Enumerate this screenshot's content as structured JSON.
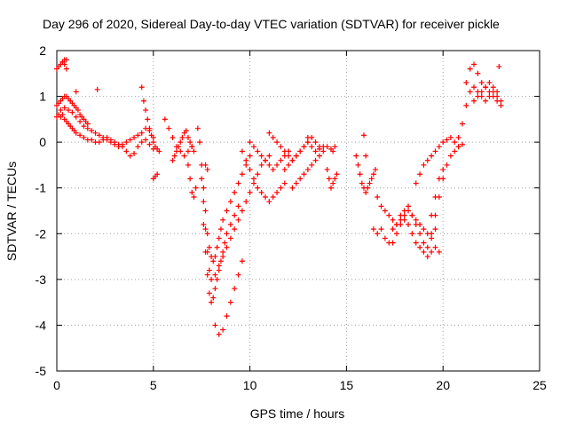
{
  "chart_data": {
    "type": "scatter",
    "title": "Day 296 of 2020, Sidereal Day-to-day VTEC variation (SDTVAR) for receiver pickle",
    "xlabel": "GPS time / hours",
    "ylabel": "SDTVAR / TECUs",
    "xlim": [
      0,
      25
    ],
    "ylim": [
      -5,
      2
    ],
    "xticks": [
      0,
      5,
      10,
      15,
      20,
      25
    ],
    "yticks": [
      -5,
      -4,
      -3,
      -2,
      -1,
      0,
      1,
      2
    ],
    "xtick_labels": [
      "0",
      "5",
      "10",
      "15",
      "20",
      "25"
    ],
    "ytick_labels": [
      "-5",
      "-4",
      "-3",
      "-2",
      "-1",
      "0",
      "1",
      "2"
    ],
    "grid": true,
    "marker": "+",
    "color": "#ff0000",
    "series": [
      {
        "name": "SDTVAR",
        "x": [
          0.0,
          0.1,
          0.2,
          0.3,
          0.4,
          0.5,
          0.6,
          0.7,
          0.8,
          0.9,
          1.0,
          1.2,
          1.4,
          1.6,
          1.8,
          2.0,
          2.2,
          2.4,
          2.6,
          2.8,
          3.0,
          3.2,
          3.4,
          3.6,
          3.8,
          4.0,
          4.2,
          4.4,
          4.6,
          4.8,
          5.0,
          0.0,
          0.1,
          0.2,
          0.3,
          0.4,
          0.5,
          0.6,
          0.7,
          0.8,
          0.9,
          1.0,
          1.1,
          1.2,
          1.3,
          1.4,
          1.5,
          1.6,
          0.0,
          0.1,
          0.2,
          0.3,
          0.4,
          0.5,
          0.2,
          0.4,
          0.6,
          0.8,
          1.0,
          1.2,
          1.4,
          1.6,
          1.8,
          2.0,
          2.2,
          2.4,
          2.6,
          2.8,
          3.0,
          3.2,
          3.4,
          3.6,
          3.8,
          4.0,
          4.2,
          4.4,
          4.6,
          4.8,
          5.0,
          4.5,
          4.6,
          4.7,
          4.8,
          4.9,
          5.0,
          5.1,
          5.2,
          5.3,
          5.0,
          5.1,
          5.2,
          5.6,
          5.8,
          6.0,
          6.2,
          6.4,
          6.6,
          6.8,
          7.0,
          6.0,
          6.1,
          6.2,
          6.3,
          6.4,
          6.5,
          6.6,
          6.7,
          6.8,
          6.9,
          7.0,
          7.1,
          6.8,
          6.9,
          7.0,
          7.1,
          7.2,
          7.3,
          7.4,
          7.5,
          7.6,
          7.7,
          7.8,
          7.9,
          8.0,
          8.1,
          8.2,
          8.3,
          8.4,
          8.5,
          8.6,
          8.8,
          9.0,
          9.2,
          9.4,
          9.6,
          9.8,
          10.0,
          7.5,
          7.6,
          7.7,
          7.8,
          7.9,
          8.0,
          8.2,
          8.4,
          8.6,
          8.8,
          9.0,
          9.2,
          9.4,
          9.6,
          9.8,
          10.0,
          10.2,
          10.4,
          10.6,
          10.8,
          11.0,
          7.6,
          7.7,
          7.8,
          7.9,
          8.0,
          8.1,
          8.2,
          8.3,
          8.4,
          8.5,
          8.6,
          8.7,
          8.8,
          9.0,
          9.2,
          9.4,
          8.2,
          8.4,
          8.6,
          8.8,
          9.0,
          9.2,
          9.4,
          9.6,
          9.6,
          9.8,
          10.0,
          10.2,
          10.4,
          10.6,
          10.8,
          11.0,
          11.2,
          11.4,
          11.6,
          11.8,
          10.0,
          10.2,
          10.4,
          10.6,
          10.8,
          11.0,
          11.2,
          11.4,
          11.6,
          11.8,
          12.0,
          11.0,
          11.2,
          11.4,
          11.6,
          11.8,
          12.0,
          12.2,
          12.4,
          12.6,
          12.8,
          13.0,
          13.2,
          13.4,
          13.6,
          13.8,
          14.0,
          14.2,
          14.4,
          11.8,
          12.0,
          12.2,
          12.4,
          12.6,
          12.8,
          13.0,
          13.2,
          13.4,
          13.6,
          13.8,
          12.2,
          12.4,
          12.6,
          12.8,
          13.0,
          13.2,
          13.4,
          13.6,
          14.0,
          14.1,
          14.2,
          14.3,
          14.4,
          14.5,
          15.5,
          15.6,
          15.7,
          15.8,
          15.9,
          16.0,
          16.1,
          16.2,
          16.3,
          16.4,
          16.5,
          16.4,
          16.6,
          16.8,
          17.0,
          17.2,
          17.4,
          17.6,
          17.8,
          18.0,
          18.2,
          18.4,
          18.6,
          18.8,
          19.0,
          19.2,
          19.4,
          19.6,
          19.8,
          16.6,
          16.8,
          17.0,
          17.2,
          17.4,
          17.6,
          17.8,
          18.0,
          18.2,
          18.4,
          18.6,
          18.8,
          19.0,
          19.2,
          19.4,
          19.6,
          17.4,
          17.6,
          17.8,
          18.0,
          18.2,
          18.4,
          18.6,
          18.8,
          19.0,
          19.2,
          19.4,
          19.6,
          19.8,
          20.0,
          18.6,
          18.8,
          19.0,
          19.2,
          19.4,
          19.6,
          19.8,
          20.0,
          20.2,
          20.4,
          20.6,
          20.8,
          19.4,
          19.6,
          19.8,
          20.0,
          20.2,
          20.4,
          20.6,
          20.8,
          21.0,
          20.8,
          21.0,
          21.2,
          21.4,
          21.6,
          21.8,
          22.0,
          22.2,
          22.4,
          22.6,
          22.8,
          23.0,
          21.2,
          21.4,
          21.6,
          21.8,
          22.0,
          22.2,
          22.4,
          22.6,
          22.8,
          23.0,
          21.6,
          21.8,
          22.0,
          22.2,
          22.4,
          22.6,
          22.8,
          0.3,
          0.4,
          0.5,
          22.9,
          1.0,
          2.1,
          4.4,
          7.7,
          7.8,
          12.0,
          13.0,
          14.3,
          15.9,
          16.0
        ],
        "y": [
          0.55,
          0.6,
          0.55,
          0.6,
          0.5,
          0.45,
          0.4,
          0.35,
          0.3,
          0.25,
          0.2,
          0.15,
          0.1,
          0.05,
          0.05,
          0.0,
          0.0,
          0.05,
          0.1,
          0.05,
          0.0,
          -0.05,
          -0.1,
          -0.2,
          -0.3,
          -0.25,
          -0.1,
          0.0,
          0.05,
          -0.05,
          -0.15,
          0.8,
          0.85,
          0.9,
          0.95,
          1.0,
          1.0,
          0.95,
          0.9,
          0.85,
          0.8,
          0.75,
          0.7,
          0.6,
          0.55,
          0.5,
          0.45,
          0.4,
          1.6,
          1.65,
          1.7,
          1.75,
          1.7,
          1.6,
          0.7,
          0.75,
          0.7,
          0.65,
          0.55,
          0.45,
          0.35,
          0.3,
          0.25,
          0.2,
          0.15,
          0.1,
          0.05,
          0.0,
          -0.05,
          -0.1,
          -0.05,
          0.0,
          0.05,
          0.1,
          0.15,
          0.2,
          0.3,
          0.25,
          0.1,
          0.9,
          0.7,
          0.5,
          0.3,
          0.15,
          0.0,
          -0.1,
          -0.15,
          -0.2,
          -0.8,
          -0.75,
          -0.7,
          0.5,
          0.3,
          0.1,
          -0.1,
          -0.2,
          -0.3,
          -0.2,
          -0.1,
          -0.4,
          -0.3,
          -0.2,
          -0.1,
          0.0,
          0.1,
          0.2,
          0.25,
          0.1,
          0.0,
          -0.1,
          -0.2,
          -0.5,
          -0.8,
          -1.1,
          -1.2,
          -1.0,
          0.3,
          0.0,
          -0.5,
          -1.0,
          -1.5,
          -2.0,
          -2.3,
          -2.5,
          -2.6,
          -2.5,
          -2.3,
          -2.1,
          -1.9,
          -1.7,
          -1.5,
          -1.3,
          -1.1,
          -0.9,
          -0.7,
          -0.5,
          -0.3,
          -0.8,
          -1.3,
          -1.9,
          -2.4,
          -2.8,
          -3.0,
          -2.9,
          -2.7,
          -2.5,
          -2.3,
          -2.1,
          -1.9,
          -1.7,
          -1.5,
          -1.3,
          -1.1,
          -0.9,
          -0.7,
          -0.5,
          -0.4,
          -0.3,
          -1.8,
          -2.4,
          -2.9,
          -3.3,
          -3.5,
          -3.4,
          -3.2,
          -3.0,
          -2.8,
          -2.6,
          -2.4,
          -2.2,
          -2.0,
          -1.8,
          -1.6,
          -1.4,
          -4.0,
          -4.2,
          -4.1,
          -3.8,
          -3.5,
          -3.2,
          -2.9,
          -2.6,
          -0.2,
          -0.4,
          -0.6,
          -0.8,
          -1.0,
          -1.1,
          -1.2,
          -1.3,
          -1.2,
          -1.1,
          -1.0,
          -0.9,
          0.0,
          -0.1,
          -0.2,
          -0.3,
          -0.4,
          -0.5,
          -0.6,
          -0.5,
          -0.4,
          -0.3,
          -0.2,
          0.2,
          0.1,
          0.0,
          -0.1,
          -0.2,
          -0.3,
          -0.4,
          -0.3,
          -0.2,
          -0.1,
          0.0,
          -0.1,
          -0.2,
          -0.15,
          -0.1,
          -0.1,
          -0.15,
          -0.1,
          -0.6,
          -0.5,
          -0.4,
          -0.3,
          -0.2,
          -0.1,
          0.0,
          0.1,
          0.0,
          -0.1,
          -0.2,
          -1.0,
          -0.9,
          -0.8,
          -0.7,
          -0.6,
          -0.5,
          -0.4,
          -0.3,
          -0.6,
          -0.8,
          -1.0,
          -0.9,
          -0.8,
          -0.7,
          -0.3,
          -0.5,
          -0.7,
          -0.9,
          -1.0,
          -1.1,
          -1.0,
          -0.9,
          -0.8,
          -0.7,
          -0.6,
          -1.9,
          -2.0,
          -1.9,
          -2.1,
          -2.2,
          -2.2,
          -2.0,
          -1.8,
          -1.7,
          -1.8,
          -2.0,
          -2.2,
          -2.3,
          -2.4,
          -2.5,
          -2.4,
          -2.3,
          -2.4,
          -1.2,
          -1.4,
          -1.5,
          -1.6,
          -1.7,
          -1.8,
          -1.6,
          -1.5,
          -1.4,
          -1.6,
          -1.8,
          -2.0,
          -2.2,
          -2.3,
          -2.1,
          -1.9,
          -1.9,
          -1.8,
          -1.7,
          -1.6,
          -1.5,
          -1.6,
          -1.7,
          -1.8,
          -1.9,
          -2.0,
          -1.6,
          -1.2,
          -0.8,
          -0.6,
          -0.9,
          -0.7,
          -0.5,
          -0.4,
          -0.3,
          -0.2,
          -0.1,
          0.0,
          0.05,
          0.1,
          0.0,
          -0.1,
          -2.0,
          -1.6,
          -1.2,
          -0.8,
          -0.5,
          -0.3,
          -0.2,
          -0.1,
          -0.05,
          0.1,
          0.4,
          0.8,
          1.1,
          1.2,
          1.1,
          1.0,
          0.9,
          1.0,
          1.1,
          1.0,
          0.9,
          1.3,
          1.6,
          1.7,
          1.5,
          1.3,
          1.2,
          1.1,
          1.0,
          0.9,
          0.8,
          0.9,
          1.0,
          1.1,
          1.2,
          1.3,
          1.2,
          1.1,
          1.75,
          1.8,
          1.8,
          1.65,
          1.1,
          1.15,
          1.2,
          -0.5,
          -0.6,
          -0.2,
          0.1,
          -0.2,
          0.15,
          -0.3
        ]
      }
    ]
  }
}
